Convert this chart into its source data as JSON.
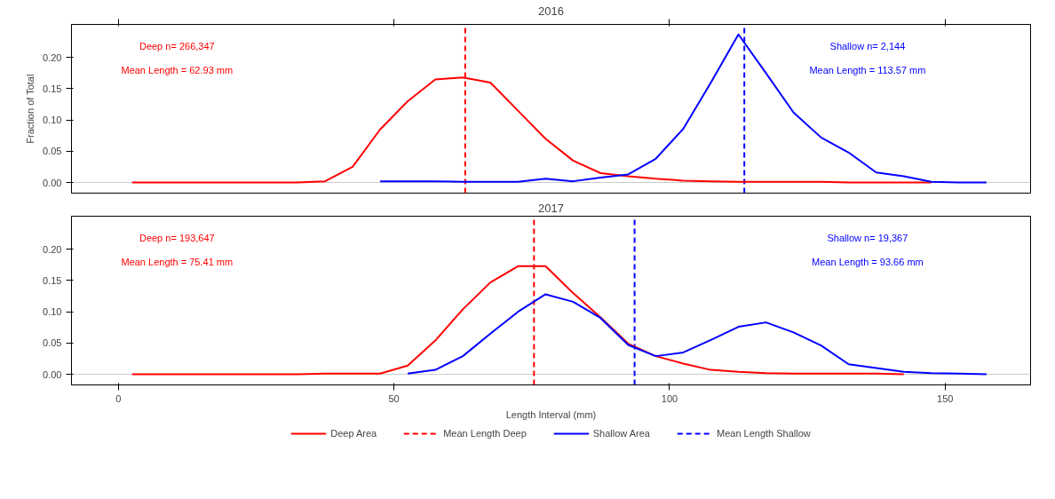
{
  "chart_data": [
    {
      "type": "line",
      "title": "2016",
      "ylabel": "Fraction of Total",
      "series": [
        {
          "color": "#ff0000",
          "x": [
            2.5,
            7.5,
            12.5,
            17.5,
            22.5,
            27.5,
            32.5,
            37.5,
            42.5,
            47.5,
            52.5,
            57.5,
            62.5,
            67.5,
            72.5,
            77.5,
            82.5,
            87.5,
            92.5,
            97.5,
            102.5,
            107.5,
            112.5,
            117.5,
            122.5,
            127.5,
            132.5,
            137.5,
            142.5,
            147.5
          ],
          "values": [
            0,
            0,
            0,
            0,
            0,
            0,
            0,
            0.002,
            0.025,
            0.085,
            0.13,
            0.165,
            0.168,
            0.16,
            0.115,
            0.07,
            0.035,
            0.015,
            0.01,
            0.006,
            0.003,
            0.002,
            0.001,
            0.001,
            0.001,
            0.001,
            0,
            0,
            0,
            0
          ]
        },
        {
          "color": "#0000ff",
          "x": [
            47.5,
            52.5,
            57.5,
            62.5,
            67.5,
            72.5,
            77.5,
            82.5,
            87.5,
            92.5,
            97.5,
            102.5,
            107.5,
            112.5,
            117.5,
            122.5,
            127.5,
            132.5,
            137.5,
            142.5,
            147.5,
            152.5,
            157.5
          ],
          "values": [
            0.002,
            0.002,
            0.002,
            0.001,
            0.001,
            0.001,
            0.006,
            0.002,
            0.008,
            0.013,
            0.038,
            0.086,
            0.16,
            0.237,
            0.175,
            0.112,
            0.072,
            0.048,
            0.016,
            0.01,
            0.001,
            0,
            0
          ]
        }
      ],
      "ref_lines": [
        {
          "axis": "y",
          "value": 0,
          "color": "#cccccc",
          "line_style": "solid"
        },
        {
          "axis": "x",
          "value": 62.93,
          "color": "#ff0000",
          "line_style": "dashed"
        },
        {
          "axis": "x",
          "value": 113.57,
          "color": "#0000ff",
          "line_style": "dashed"
        }
      ],
      "annotations": [
        "Deep n= 266,347",
        "Mean Length = 62.93 mm",
        "Shallow n= 2,144",
        "Mean Length = 113.57 mm"
      ],
      "xlim": [
        -8.5,
        165.5
      ],
      "xticks": [
        0,
        50,
        100,
        150
      ],
      "ylim": [
        -0.017,
        0.253
      ],
      "yticks": [
        {
          "value": 0,
          "label": "0.00"
        },
        {
          "value": 0.05,
          "label": "0.05"
        },
        {
          "value": 0.1,
          "label": "0.10"
        },
        {
          "value": 0.15,
          "label": "0.15"
        },
        {
          "value": 0.2,
          "label": "0.20"
        }
      ],
      "tick_labels": "y",
      "line_style": "solid",
      "marker": "none"
    },
    {
      "type": "line",
      "title": "2017",
      "xlabel": "Length Interval (mm)",
      "series": [
        {
          "name": "Deep Area",
          "color": "#ff0000",
          "x": [
            2.5,
            7.5,
            12.5,
            17.5,
            22.5,
            27.5,
            32.5,
            37.5,
            42.5,
            47.5,
            52.5,
            57.5,
            62.5,
            67.5,
            72.5,
            77.5,
            82.5,
            87.5,
            92.5,
            97.5,
            102.5,
            107.5,
            112.5,
            117.5,
            122.5,
            127.5,
            132.5,
            137.5,
            142.5
          ],
          "values": [
            0,
            0,
            0,
            0,
            0,
            0,
            0,
            0.001,
            0.001,
            0.001,
            0.014,
            0.054,
            0.104,
            0.147,
            0.173,
            0.173,
            0.13,
            0.091,
            0.049,
            0.029,
            0.017,
            0.007,
            0.004,
            0.002,
            0.001,
            0.001,
            0.001,
            0.001,
            0
          ]
        },
        {
          "name": "Shallow Area",
          "color": "#0000ff",
          "x": [
            52.5,
            57.5,
            62.5,
            67.5,
            72.5,
            77.5,
            82.5,
            87.5,
            92.5,
            97.5,
            102.5,
            107.5,
            112.5,
            117.5,
            122.5,
            127.5,
            132.5,
            137.5,
            142.5,
            147.5,
            152.5,
            157.5
          ],
          "values": [
            0.001,
            0.007,
            0.029,
            0.065,
            0.1,
            0.128,
            0.116,
            0.09,
            0.047,
            0.029,
            0.035,
            0.055,
            0.076,
            0.083,
            0.067,
            0.046,
            0.016,
            0.01,
            0.004,
            0.002,
            0.001,
            0
          ]
        }
      ],
      "ref_lines": [
        {
          "axis": "y",
          "value": 0,
          "color": "#cccccc",
          "line_style": "solid"
        },
        {
          "axis": "x",
          "value": 75.41,
          "color": "#ff0000",
          "line_style": "dashed",
          "label": "Mean Length Deep"
        },
        {
          "axis": "x",
          "value": 93.66,
          "color": "#0000ff",
          "line_style": "dashed",
          "label": "Mean Length Shallow"
        }
      ],
      "annotations": [
        "Deep n= 193,647",
        "Mean Length = 75.41 mm",
        "Shallow n= 19,367",
        "Mean Length = 93.66 mm"
      ],
      "xlim": [
        -8.5,
        165.5
      ],
      "xticks": [
        0,
        50,
        100,
        150
      ],
      "ylim": [
        -0.017,
        0.253
      ],
      "yticks": [
        {
          "value": 0,
          "label": "0.00"
        },
        {
          "value": 0.05,
          "label": "0.05"
        },
        {
          "value": 0.1,
          "label": "0.10"
        },
        {
          "value": 0.15,
          "label": "0.15"
        },
        {
          "value": 0.2,
          "label": "0.20"
        }
      ],
      "legend": "bottom",
      "line_style": "solid",
      "marker": "none"
    }
  ]
}
